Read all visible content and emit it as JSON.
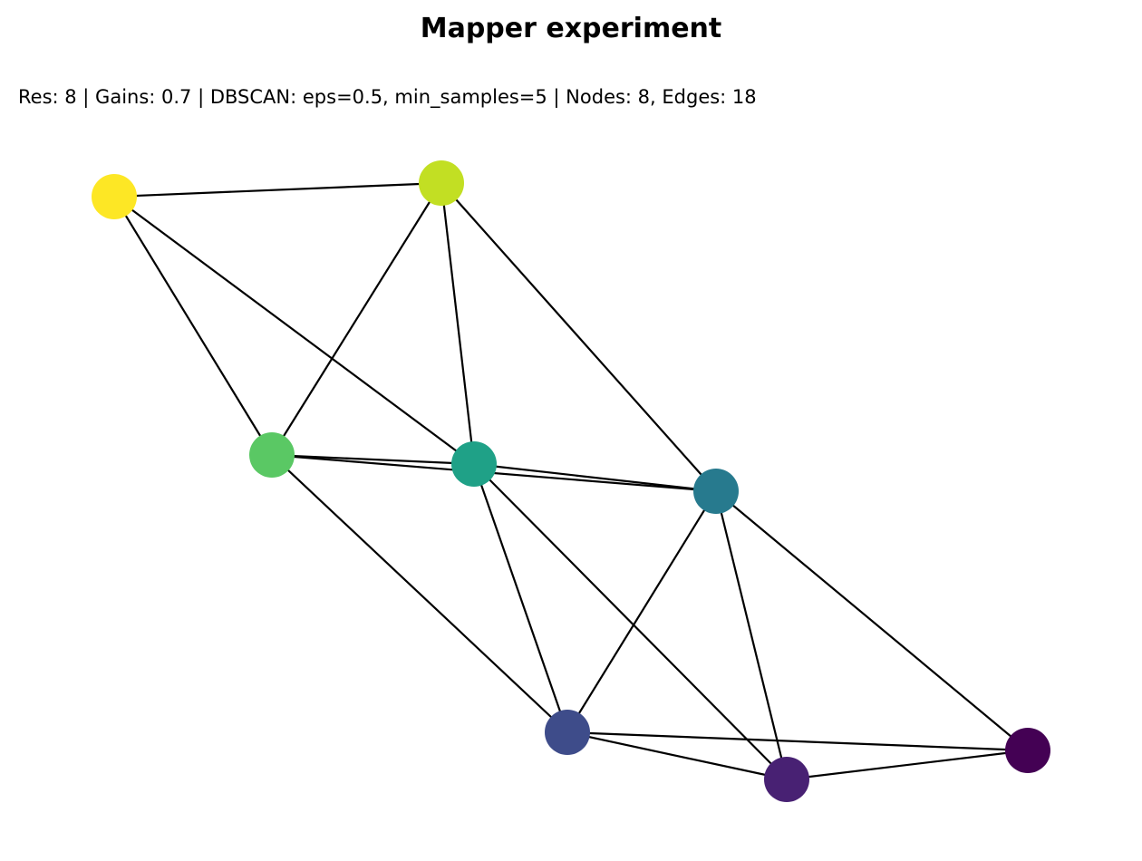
{
  "title": "Mapper experiment",
  "subtitle": "Res: 8 | Gains: 0.7 | DBSCAN: eps=0.5, min_samples=5 | Nodes: 8, Edges: 18",
  "graph": {
    "nodes": [
      {
        "id": "n0",
        "color": "#440154"
      },
      {
        "id": "n1",
        "color": "#482173"
      },
      {
        "id": "n2",
        "color": "#3e4c8a"
      },
      {
        "id": "n3",
        "color": "#277a8e"
      },
      {
        "id": "n4",
        "color": "#1fa187"
      },
      {
        "id": "n5",
        "color": "#5ac864"
      },
      {
        "id": "n6",
        "color": "#c2df23"
      },
      {
        "id": "n7",
        "color": "#fde725"
      }
    ],
    "edges": [
      [
        "n7",
        "n6"
      ],
      [
        "n7",
        "n5"
      ],
      [
        "n7",
        "n4"
      ],
      [
        "n6",
        "n5"
      ],
      [
        "n6",
        "n4"
      ],
      [
        "n6",
        "n3"
      ],
      [
        "n5",
        "n4"
      ],
      [
        "n5",
        "n3"
      ],
      [
        "n5",
        "n2"
      ],
      [
        "n4",
        "n3"
      ],
      [
        "n4",
        "n2"
      ],
      [
        "n4",
        "n1"
      ],
      [
        "n3",
        "n2"
      ],
      [
        "n3",
        "n1"
      ],
      [
        "n3",
        "n0"
      ],
      [
        "n2",
        "n1"
      ],
      [
        "n2",
        "n0"
      ],
      [
        "n1",
        "n0"
      ]
    ]
  }
}
